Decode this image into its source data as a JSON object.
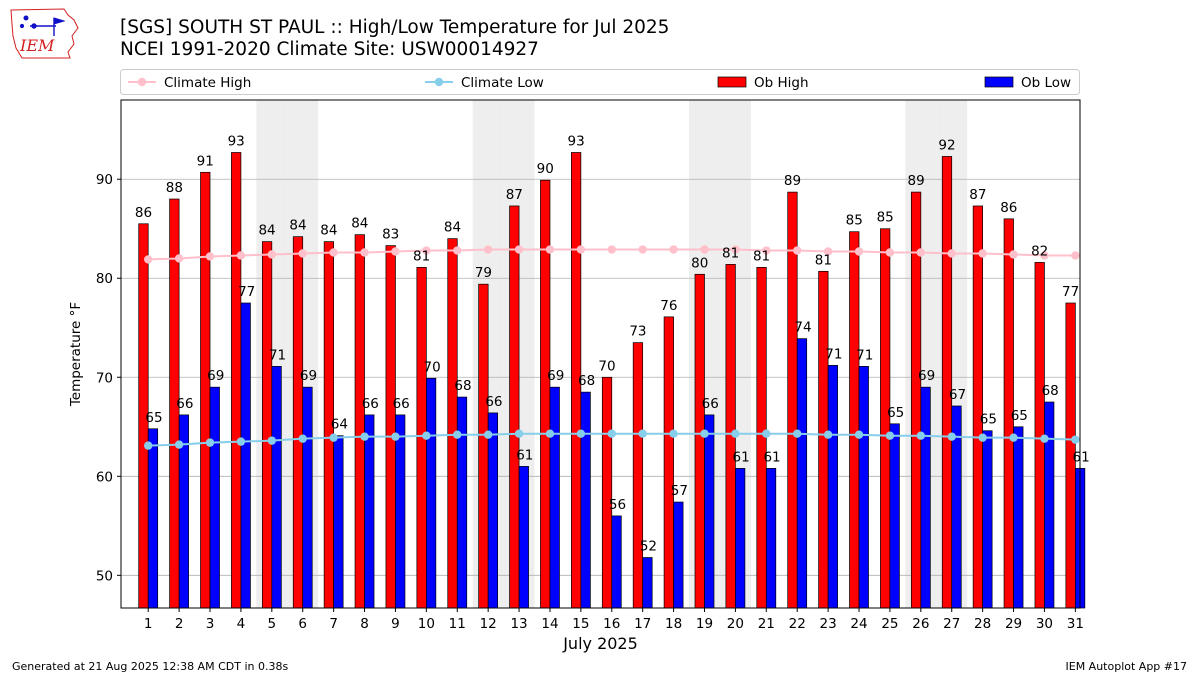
{
  "chart_data": {
    "type": "bar",
    "title": "[SGS] SOUTH ST PAUL :: High/Low Temperature for Jul 2025",
    "subtitle": "NCEI 1991-2020 Climate Site: USW00014927",
    "xlabel": "July 2025",
    "ylabel": "Temperature °F",
    "ylim": [
      46.7,
      98.0
    ],
    "yticks": [
      50,
      60,
      70,
      80,
      90
    ],
    "categories": [
      "1",
      "2",
      "3",
      "4",
      "5",
      "6",
      "7",
      "8",
      "9",
      "10",
      "11",
      "12",
      "13",
      "14",
      "15",
      "16",
      "17",
      "18",
      "19",
      "20",
      "21",
      "22",
      "23",
      "24",
      "25",
      "26",
      "27",
      "28",
      "29",
      "30",
      "31"
    ],
    "weekend_days": [
      5,
      6,
      12,
      13,
      19,
      20,
      26,
      27
    ],
    "series": [
      {
        "name": "Ob High",
        "kind": "bar",
        "color": "#ff0000",
        "values": [
          85.5,
          88.0,
          90.7,
          92.7,
          83.7,
          84.2,
          83.7,
          84.4,
          83.3,
          81.1,
          84.0,
          79.4,
          87.3,
          89.9,
          92.7,
          70.0,
          73.5,
          76.1,
          80.4,
          81.4,
          81.1,
          88.7,
          80.7,
          84.7,
          85.0,
          88.7,
          92.3,
          87.3,
          86.0,
          81.6,
          77.5
        ],
        "labels": [
          "86",
          "88",
          "91",
          "93",
          "84",
          "84",
          "84",
          "84",
          "83",
          "81",
          "84",
          "79",
          "87",
          "90",
          "93",
          "70",
          "73",
          "76",
          "80",
          "81",
          "81",
          "89",
          "81",
          "85",
          "85",
          "89",
          "92",
          "87",
          "86",
          "82",
          "77"
        ]
      },
      {
        "name": "Ob Low",
        "kind": "bar",
        "color": "#0000ff",
        "values": [
          64.8,
          66.2,
          69.0,
          77.5,
          71.1,
          69.0,
          64.1,
          66.2,
          66.2,
          69.9,
          68.0,
          66.4,
          61.0,
          69.0,
          68.5,
          56.0,
          51.8,
          57.4,
          66.2,
          60.8,
          60.8,
          73.9,
          71.2,
          71.1,
          65.3,
          69.0,
          67.1,
          64.6,
          65.0,
          67.5,
          60.8
        ],
        "labels": [
          "65",
          "66",
          "69",
          "77",
          "71",
          "69",
          "64",
          "66",
          "66",
          "70",
          "68",
          "66",
          "61",
          "69",
          "68",
          "56",
          "52",
          "57",
          "66",
          "61",
          "61",
          "74",
          "71",
          "71",
          "65",
          "69",
          "67",
          "65",
          "65",
          "68",
          "61"
        ]
      },
      {
        "name": "Climate High",
        "kind": "line",
        "color": "#ffc0cb",
        "values": [
          81.9,
          82.0,
          82.2,
          82.3,
          82.4,
          82.5,
          82.6,
          82.6,
          82.7,
          82.8,
          82.8,
          82.9,
          82.9,
          82.9,
          82.9,
          82.9,
          82.9,
          82.9,
          82.9,
          82.9,
          82.8,
          82.8,
          82.7,
          82.7,
          82.6,
          82.6,
          82.5,
          82.5,
          82.4,
          82.3,
          82.3
        ]
      },
      {
        "name": "Climate Low",
        "kind": "line",
        "color": "#87ceeb",
        "values": [
          63.1,
          63.2,
          63.4,
          63.5,
          63.6,
          63.8,
          63.9,
          64.0,
          64.0,
          64.1,
          64.2,
          64.2,
          64.3,
          64.3,
          64.3,
          64.3,
          64.3,
          64.3,
          64.3,
          64.3,
          64.3,
          64.3,
          64.2,
          64.2,
          64.1,
          64.1,
          64.0,
          63.9,
          63.9,
          63.8,
          63.7
        ]
      }
    ],
    "legend_order": [
      "Climate High",
      "Climate Low",
      "Ob High",
      "Ob Low"
    ],
    "legend_position": "top",
    "grid": true
  },
  "logo_text": "IEM",
  "footer": {
    "left": "Generated at 21 Aug 2025 12:38 AM CDT in 0.38s",
    "right": "IEM Autoplot App #17"
  },
  "colors": {
    "weekend_shade": "#eeeeee",
    "grid": "#b0b0b0",
    "logo": "#d42020",
    "logo_accent": "#1010c8"
  }
}
